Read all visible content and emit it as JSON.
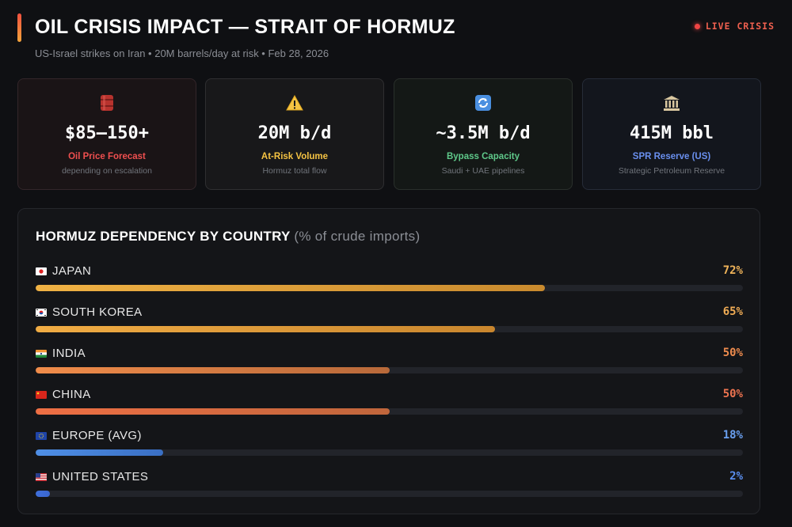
{
  "header": {
    "title": "OIL CRISIS IMPACT — STRAIT OF HORMUZ",
    "subtitle": "US-Israel strikes on Iran • 20M barrels/day at risk • Feb 28, 2026",
    "live_label": "LIVE CRISIS"
  },
  "cards": [
    {
      "icon": "oil-barrel-icon",
      "value": "$85–150+",
      "label": "Oil Price Forecast",
      "sub": "depending on escalation"
    },
    {
      "icon": "warning-icon",
      "value": "20M b/d",
      "label": "At-Risk Volume",
      "sub": "Hormuz total flow"
    },
    {
      "icon": "refresh-icon",
      "value": "~3.5M b/d",
      "label": "Bypass Capacity",
      "sub": "Saudi + UAE pipelines"
    },
    {
      "icon": "bank-icon",
      "value": "415M bbl",
      "label": "SPR Reserve (US)",
      "sub": "Strategic Petroleum Reserve"
    }
  ],
  "dependency": {
    "title": "HORMUZ DEPENDENCY BY COUNTRY",
    "title_note": "(% of crude imports)",
    "rows": [
      {
        "country": "JAPAN",
        "flag": "japan-flag-icon",
        "pct_label": "72%",
        "value": 72,
        "color_start": "#f0b244",
        "color_end": "#c98a2e",
        "pct_color": "#f0b45a"
      },
      {
        "country": "SOUTH KOREA",
        "flag": "south-korea-flag-icon",
        "pct_label": "65%",
        "value": 65,
        "color_start": "#f0ac44",
        "color_end": "#c9862e",
        "pct_color": "#f0ac55"
      },
      {
        "country": "INDIA",
        "flag": "india-flag-icon",
        "pct_label": "50%",
        "value": 50,
        "color_start": "#f08c4a",
        "color_end": "#b8693a",
        "pct_color": "#ef8c4e"
      },
      {
        "country": "CHINA",
        "flag": "china-flag-icon",
        "pct_label": "50%",
        "value": 50,
        "color_start": "#ee6f44",
        "color_end": "#c0663c",
        "pct_color": "#ee7450"
      },
      {
        "country": "EUROPE (AVG)",
        "flag": "eu-flag-icon",
        "pct_label": "18%",
        "value": 18,
        "color_start": "#4f8fe6",
        "color_end": "#3a6fc4",
        "pct_color": "#6aa0f0"
      },
      {
        "country": "UNITED STATES",
        "flag": "us-flag-icon",
        "pct_label": "2%",
        "value": 2,
        "color_start": "#3f6fdc",
        "color_end": "#3a66cf",
        "pct_color": "#5b8ff0"
      }
    ]
  },
  "colors": {
    "accent_red": "#ef4444",
    "accent_orange": "#f3a43b"
  }
}
